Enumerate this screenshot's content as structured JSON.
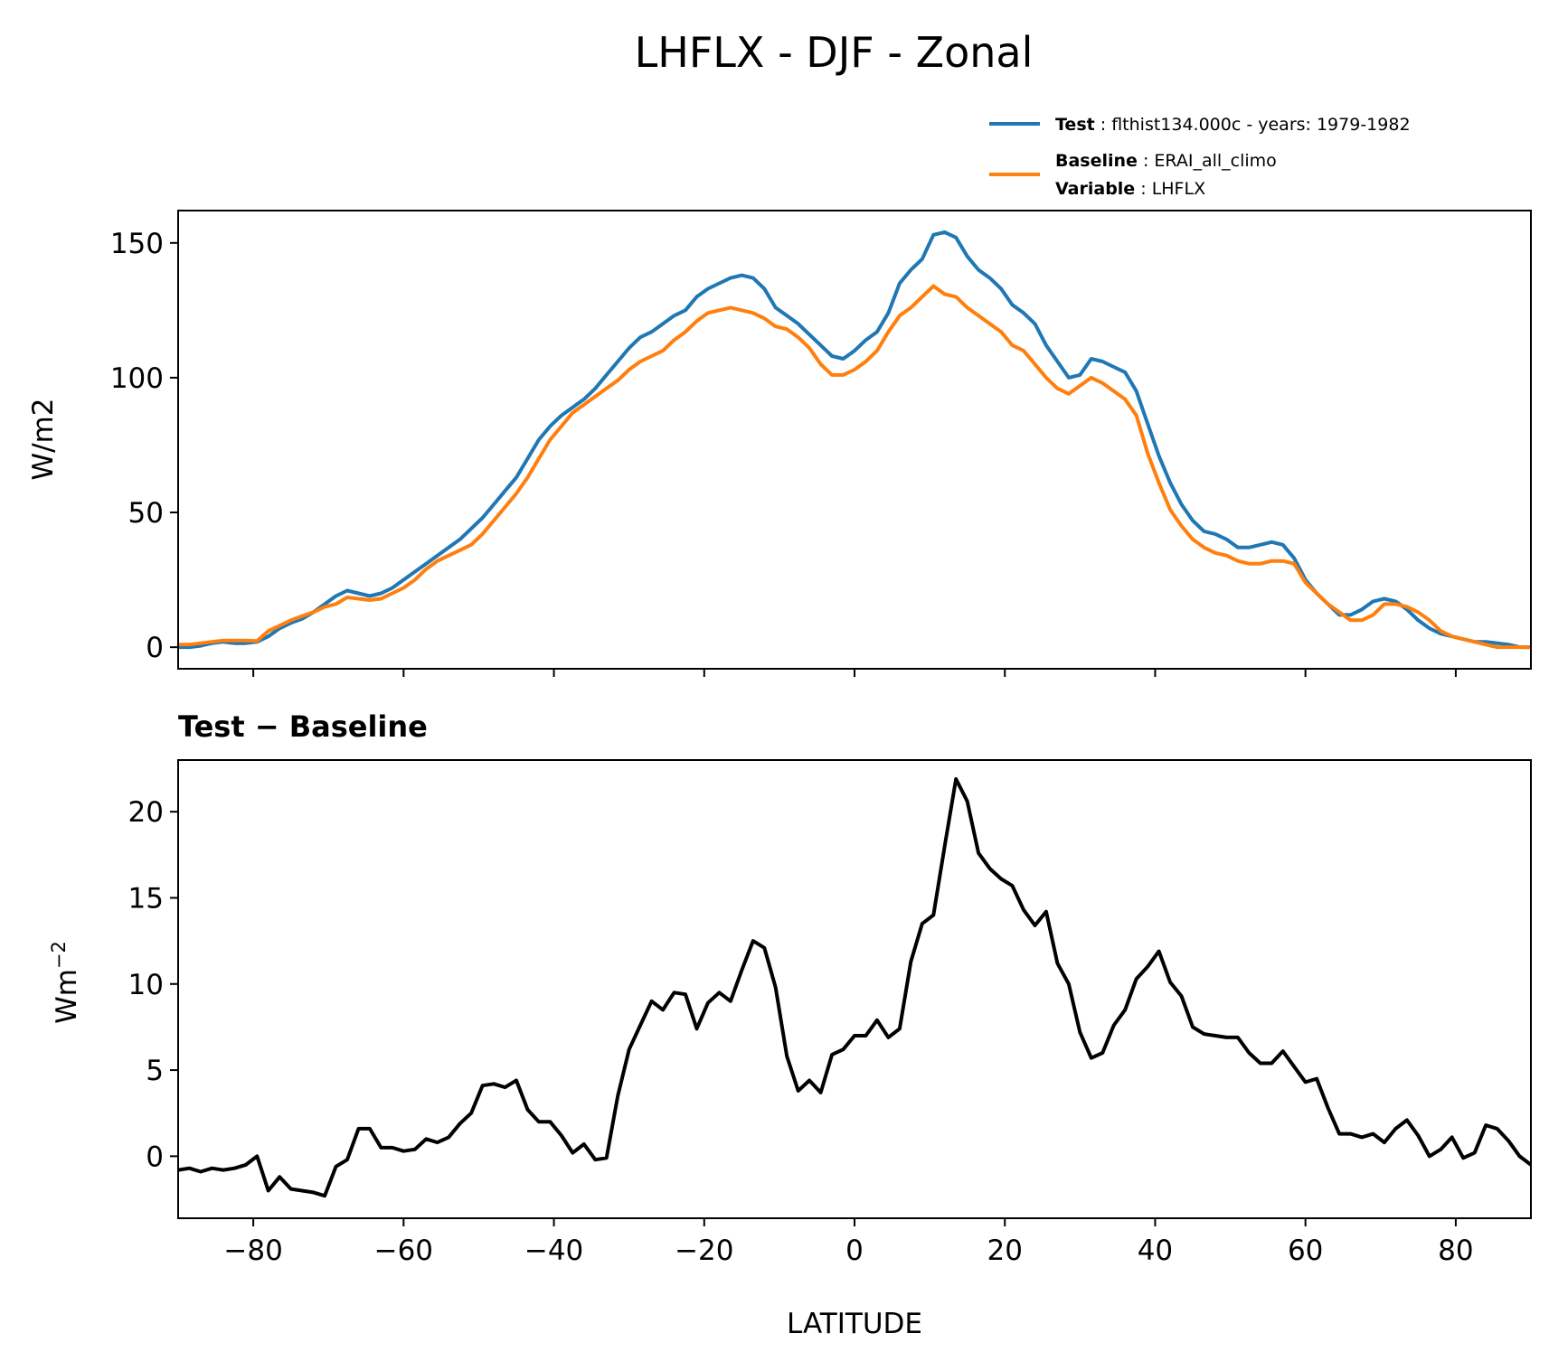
{
  "title": "LHFLX - DJF - Zonal",
  "legend": {
    "test": {
      "label": "Test",
      "text": "flthist134.000c - years: 1979-1982",
      "color": "#1f77b4"
    },
    "baseline": {
      "label": "Baseline",
      "text": "ERAI_all_climo",
      "color": "#ff7f0e"
    },
    "variable": {
      "label": "Variable",
      "text": "LHFLX"
    }
  },
  "top_panel": {
    "ylabel": "W/m2",
    "ylim": [
      -8,
      162
    ],
    "xlim": [
      -90,
      90
    ],
    "yticks": [
      "0",
      "50",
      "100",
      "150"
    ]
  },
  "bottom_panel": {
    "subtitle": "Test − Baseline",
    "ylabel": "Wm",
    "ylabel_sup": "−2",
    "ylim": [
      -3.6,
      23.0
    ],
    "xlim": [
      -90,
      90
    ],
    "yticks": [
      "0",
      "5",
      "10",
      "15",
      "20"
    ],
    "xticks": [
      "−80",
      "−60",
      "−40",
      "−20",
      "0",
      "20",
      "40",
      "60",
      "80"
    ],
    "xlabel": "LATITUDE"
  },
  "chart_data": [
    {
      "type": "line",
      "x": [
        -90,
        -88.5,
        -87,
        -85.5,
        -84,
        -82.5,
        -81,
        -79.5,
        -78,
        -76.5,
        -75,
        -73.5,
        -72,
        -70.5,
        -69,
        -67.5,
        -66,
        -64.5,
        -63,
        -61.5,
        -60,
        -58.5,
        -57,
        -55.5,
        -54,
        -52.5,
        -51,
        -49.5,
        -48,
        -46.5,
        -45,
        -43.5,
        -42,
        -40.5,
        -39,
        -37.5,
        -36,
        -34.5,
        -33,
        -31.5,
        -30,
        -28.5,
        -27,
        -25.5,
        -24,
        -22.5,
        -21,
        -19.5,
        -18,
        -16.5,
        -15,
        -13.5,
        -12,
        -10.5,
        -9,
        -7.5,
        -6,
        -4.5,
        -3,
        -1.5,
        0,
        1.5,
        3,
        4.5,
        6,
        7.5,
        9,
        10.5,
        12,
        13.5,
        15,
        16.5,
        18,
        19.5,
        21,
        22.5,
        24,
        25.5,
        27,
        28.5,
        30,
        31.5,
        33,
        34.5,
        36,
        37.5,
        39,
        40.5,
        42,
        43.5,
        45,
        46.5,
        48,
        49.5,
        51,
        52.5,
        54,
        55.5,
        57,
        58.5,
        60,
        61.5,
        63,
        64.5,
        66,
        67.5,
        69,
        70.5,
        72,
        73.5,
        75,
        76.5,
        78,
        79.5,
        81,
        82.5,
        84,
        85.5,
        87,
        88.5,
        90
      ],
      "series": [
        {
          "name": "Test",
          "color": "#1f77b4",
          "values": [
            0,
            0,
            0.5,
            1.5,
            2,
            1.5,
            1.5,
            2,
            4,
            7,
            9,
            10.5,
            13,
            16,
            19,
            21,
            20,
            19,
            20,
            22,
            25,
            28,
            31,
            34,
            37,
            40,
            44,
            48,
            53,
            58,
            63,
            70,
            77,
            82,
            86,
            89,
            92,
            96,
            101,
            106,
            111,
            115,
            117,
            120,
            123,
            125,
            130,
            133,
            135,
            137,
            138,
            137,
            133,
            126,
            123,
            120,
            116,
            112,
            108,
            107,
            110,
            114,
            117,
            124,
            135,
            140,
            144,
            153,
            154,
            152,
            145,
            140,
            137,
            133,
            127,
            124,
            120,
            112,
            106,
            100,
            101,
            107,
            106,
            104,
            102,
            95,
            83,
            71,
            61,
            53,
            47,
            43,
            42,
            40,
            37,
            37,
            38,
            39,
            38,
            33,
            25,
            20,
            16,
            12,
            12,
            14,
            17,
            18,
            17,
            14,
            10,
            7,
            5,
            4,
            3,
            2,
            2,
            1.5,
            1,
            0,
            0
          ]
        },
        {
          "name": "Baseline",
          "color": "#ff7f0e",
          "values": [
            1,
            1,
            1.5,
            2,
            2.5,
            2.5,
            2.5,
            2.3,
            6,
            8,
            10,
            11.5,
            13,
            15,
            16,
            18.5,
            18,
            17.5,
            18,
            20,
            22,
            25,
            29,
            32,
            34,
            36,
            38,
            42,
            47,
            52,
            57,
            63,
            70,
            77,
            82,
            87,
            90,
            93,
            96,
            99,
            103,
            106,
            108,
            110,
            114,
            117,
            121,
            124,
            125,
            126,
            125,
            124,
            122,
            119,
            118,
            115,
            111,
            105,
            101,
            101,
            103,
            106,
            110,
            117,
            123,
            126,
            130,
            134,
            131,
            130,
            126,
            123,
            120,
            117,
            112,
            110,
            105,
            100,
            96,
            94,
            97,
            100,
            98,
            95,
            92,
            86,
            72,
            61,
            51,
            45,
            40,
            37,
            35,
            34,
            32,
            31,
            31,
            32,
            32,
            31,
            24,
            20,
            16,
            13,
            10,
            10,
            12,
            16,
            16,
            15,
            13,
            10,
            6,
            4,
            3,
            2,
            1,
            0,
            0,
            0,
            0
          ]
        }
      ],
      "xlim": [
        -90,
        90
      ],
      "ylim": [
        -8,
        162
      ],
      "ylabel": "W/m2"
    },
    {
      "type": "line",
      "title": "Test − Baseline",
      "x": [
        -90,
        -88.5,
        -87,
        -85.5,
        -84,
        -82.5,
        -81,
        -79.5,
        -78,
        -76.5,
        -75,
        -73.5,
        -72,
        -70.5,
        -69,
        -67.5,
        -66,
        -64.5,
        -63,
        -61.5,
        -60,
        -58.5,
        -57,
        -55.5,
        -54,
        -52.5,
        -51,
        -49.5,
        -48,
        -46.5,
        -45,
        -43.5,
        -42,
        -40.5,
        -39,
        -37.5,
        -36,
        -34.5,
        -33,
        -31.5,
        -30,
        -28.5,
        -27,
        -25.5,
        -24,
        -22.5,
        -21,
        -19.5,
        -18,
        -16.5,
        -15,
        -13.5,
        -12,
        -10.5,
        -9,
        -7.5,
        -6,
        -4.5,
        -3,
        -1.5,
        0,
        1.5,
        3,
        4.5,
        6,
        7.5,
        9,
        10.5,
        12,
        13.5,
        15,
        16.5,
        18,
        19.5,
        21,
        22.5,
        24,
        25.5,
        27,
        28.5,
        30,
        31.5,
        33,
        34.5,
        36,
        37.5,
        39,
        40.5,
        42,
        43.5,
        45,
        46.5,
        48,
        49.5,
        51,
        52.5,
        54,
        55.5,
        57,
        58.5,
        60,
        61.5,
        63,
        64.5,
        66,
        67.5,
        69,
        70.5,
        72,
        73.5,
        75,
        76.5,
        78,
        79.5,
        81,
        82.5,
        84,
        85.5,
        87,
        88.5,
        90
      ],
      "series": [
        {
          "name": "Test − Baseline",
          "color": "#000000",
          "values": [
            -0.8,
            -0.7,
            -0.9,
            -0.7,
            -0.8,
            -0.7,
            -0.5,
            0,
            -2,
            -1.2,
            -1.9,
            -2,
            -2.1,
            -2.3,
            -0.6,
            -0.2,
            1.6,
            1.6,
            0.5,
            0.5,
            0.3,
            0.4,
            1,
            0.8,
            1.1,
            1.9,
            2.5,
            4.1,
            4.2,
            4,
            4.4,
            2.7,
            2,
            2,
            1.2,
            0.2,
            0.7,
            -0.2,
            -0.1,
            3.5,
            6.2,
            7.6,
            9,
            8.5,
            9.5,
            9.4,
            7.4,
            8.9,
            9.5,
            9,
            10.8,
            12.5,
            12.1,
            9.8,
            5.8,
            3.8,
            4.4,
            3.7,
            5.9,
            6.2,
            7,
            7,
            7.9,
            6.9,
            7.4,
            11.3,
            13.5,
            14,
            18,
            21.9,
            20.6,
            17.6,
            16.7,
            16.1,
            15.7,
            14.3,
            13.4,
            14.2,
            11.2,
            10,
            7.2,
            5.7,
            6,
            7.6,
            8.5,
            10.3,
            11,
            11.9,
            10.1,
            9.3,
            7.5,
            7.1,
            7,
            6.9,
            6.9,
            6,
            5.4,
            5.4,
            6.1,
            5.2,
            4.3,
            4.5,
            2.8,
            1.3,
            1.3,
            1.1,
            1.3,
            0.8,
            1.6,
            2.1,
            1.2,
            0,
            0.4,
            1.1,
            -0.1,
            0.2,
            1.8,
            1.6,
            0.9,
            0,
            -0.5
          ]
        }
      ],
      "xlim": [
        -90,
        90
      ],
      "ylim": [
        -3.6,
        23.0
      ],
      "ylabel": "Wm−2",
      "xlabel": "LATITUDE"
    }
  ]
}
